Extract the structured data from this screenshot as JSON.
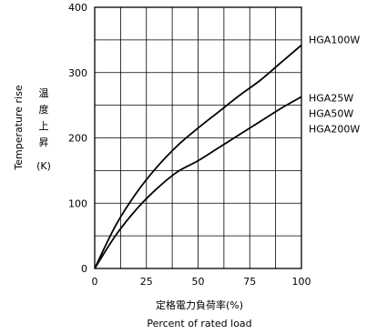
{
  "chart_data": {
    "type": "line",
    "title": "",
    "xlabel_ja": "定格電力負荷率(%)",
    "xlabel_en": "Percent of rated load",
    "ylabel_en": "Temperature rise",
    "ylabel_ja_chars": [
      "温",
      "度",
      "上",
      "昇"
    ],
    "ylabel_unit": "(K)",
    "xlim": [
      0,
      100
    ],
    "ylim": [
      0,
      400
    ],
    "x_ticks": [
      0,
      25,
      50,
      75,
      100
    ],
    "y_ticks": [
      0,
      100,
      200,
      300,
      400
    ],
    "grid": true,
    "series": [
      {
        "name": "HGA100W",
        "x": [
          0,
          10,
          20,
          30,
          40,
          50,
          60,
          70,
          80,
          90,
          100
        ],
        "y": [
          0,
          65,
          115,
          155,
          188,
          215,
          240,
          265,
          288,
          315,
          342
        ]
      },
      {
        "name": "HGA25W / HGA50W / HGA200W",
        "labels": [
          "HGA25W",
          "HGA50W",
          "HGA200W"
        ],
        "x": [
          0,
          10,
          20,
          30,
          40,
          50,
          60,
          70,
          80,
          90,
          100
        ],
        "y": [
          0,
          50,
          90,
          122,
          148,
          165,
          185,
          205,
          225,
          245,
          263
        ]
      }
    ]
  }
}
